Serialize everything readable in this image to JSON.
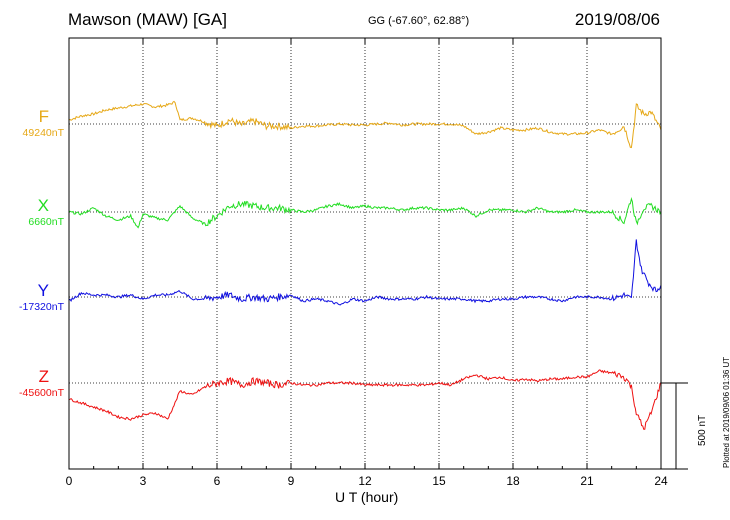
{
  "header": {
    "station": "Mawson (MAW)  [GA]",
    "coords": "GG (-67.60°,  62.88°)",
    "date": "2019/08/06"
  },
  "footer": {
    "plotted": "Plotted at 2019/09/06 01:36 UT"
  },
  "scale_bar": {
    "label": "500 nT",
    "value_nT": 500
  },
  "colors": {
    "F": "#e6a817",
    "X": "#22dd22",
    "Y": "#1010e0",
    "Z": "#ee1111"
  },
  "chart_data": {
    "type": "line",
    "xlabel": "U T (hour)",
    "xlim": [
      0,
      24
    ],
    "xticks": [
      0,
      3,
      6,
      9,
      12,
      15,
      18,
      21,
      24
    ],
    "xtick_labels": [
      "0",
      "3",
      "6",
      "9",
      "12",
      "15",
      "18",
      "21",
      "24"
    ],
    "grid": true,
    "units": "nT",
    "series": [
      {
        "name": "F",
        "baseline_label": "49240nT",
        "baseline": 49240,
        "x": [
          0,
          0.5,
          1,
          1.5,
          2,
          2.5,
          3,
          3.5,
          4,
          4.3,
          4.5,
          5,
          5.5,
          6,
          6.5,
          7,
          7.5,
          8,
          8.5,
          9,
          9.5,
          10,
          10.5,
          11,
          11.5,
          12,
          12.5,
          13,
          13.5,
          14,
          14.5,
          15,
          15.5,
          16,
          16.5,
          17,
          17.5,
          18,
          18.5,
          19,
          19.5,
          20,
          20.5,
          21,
          21.5,
          22,
          22.5,
          22.8,
          23,
          23.3,
          23.6,
          24
        ],
        "y": [
          40,
          80,
          100,
          140,
          160,
          180,
          200,
          170,
          190,
          220,
          40,
          60,
          20,
          -20,
          40,
          -10,
          30,
          -20,
          -20,
          -40,
          -20,
          -20,
          -10,
          0,
          -10,
          -10,
          0,
          10,
          -10,
          0,
          0,
          0,
          0,
          -20,
          -100,
          -80,
          -40,
          -60,
          -60,
          -40,
          -80,
          -100,
          -100,
          -90,
          -60,
          -100,
          -20,
          -240,
          180,
          100,
          120,
          -60
        ]
      },
      {
        "name": "X",
        "baseline_label": "6660nT",
        "baseline": 6660,
        "x": [
          0,
          0.5,
          1,
          1.5,
          2,
          2.5,
          2.8,
          3,
          3.5,
          4,
          4.5,
          5,
          5.5,
          6,
          6.5,
          7,
          7.5,
          8,
          8.5,
          9,
          9.5,
          10,
          10.5,
          11,
          11.5,
          12,
          12.5,
          13,
          13.5,
          14,
          14.5,
          15,
          15.5,
          16,
          16.5,
          17,
          17.5,
          18,
          18.5,
          19,
          19.5,
          20,
          20.5,
          21,
          21.5,
          22,
          22.5,
          22.8,
          23,
          23.3,
          23.6,
          24
        ],
        "y": [
          0,
          -20,
          40,
          -40,
          -80,
          -40,
          -160,
          -20,
          -60,
          -80,
          60,
          -60,
          -120,
          -40,
          60,
          80,
          60,
          40,
          40,
          20,
          0,
          20,
          60,
          80,
          40,
          60,
          40,
          40,
          20,
          40,
          40,
          20,
          20,
          40,
          -40,
          20,
          20,
          20,
          0,
          40,
          0,
          0,
          20,
          0,
          0,
          0,
          -100,
          140,
          -120,
          40,
          60,
          0
        ]
      },
      {
        "name": "Y",
        "baseline_label": "-17320nT",
        "baseline": -17320,
        "x": [
          0,
          0.5,
          1,
          1.5,
          2,
          2.5,
          3,
          3.5,
          4,
          4.5,
          5,
          5.5,
          6,
          6.5,
          7,
          7.5,
          8,
          8.5,
          9,
          9.5,
          10,
          10.5,
          11,
          11.5,
          12,
          12.5,
          13,
          13.5,
          14,
          14.5,
          15,
          15.5,
          16,
          16.5,
          17,
          17.5,
          18,
          18.5,
          19,
          19.5,
          20,
          20.5,
          21,
          21.5,
          22,
          22.5,
          22.8,
          23,
          23.2,
          23.5,
          23.8,
          24
        ],
        "y": [
          -40,
          40,
          20,
          20,
          0,
          20,
          -20,
          20,
          20,
          60,
          -20,
          -20,
          0,
          20,
          -20,
          0,
          -20,
          0,
          20,
          -40,
          -20,
          -40,
          -80,
          -20,
          -40,
          0,
          -20,
          -20,
          -20,
          0,
          -20,
          -20,
          -20,
          -40,
          -40,
          -20,
          -20,
          0,
          0,
          -20,
          -40,
          0,
          0,
          0,
          -20,
          20,
          -20,
          560,
          280,
          140,
          60,
          120
        ]
      },
      {
        "name": "Z",
        "baseline_label": "-45600nT",
        "baseline": -45600,
        "x": [
          0,
          0.5,
          1,
          1.5,
          2,
          2.5,
          3,
          3.5,
          4,
          4.3,
          4.5,
          5,
          5.5,
          6,
          6.5,
          7,
          7.5,
          8,
          8.5,
          9,
          9.5,
          10,
          10.5,
          11,
          11.5,
          12,
          12.5,
          13,
          13.5,
          14,
          14.5,
          15,
          15.5,
          16,
          16.5,
          17,
          17.5,
          18,
          18.5,
          19,
          19.5,
          20,
          20.5,
          21,
          21.5,
          22,
          22.3,
          22.6,
          22.8,
          23,
          23.3,
          23.6,
          24
        ],
        "y": [
          -160,
          -200,
          -240,
          -280,
          -340,
          -360,
          -320,
          -300,
          -360,
          -200,
          -80,
          -120,
          -40,
          0,
          20,
          -20,
          20,
          0,
          -20,
          0,
          -20,
          -20,
          0,
          0,
          0,
          -20,
          -20,
          -20,
          -20,
          -20,
          -20,
          0,
          -20,
          40,
          80,
          40,
          60,
          20,
          40,
          20,
          40,
          40,
          60,
          60,
          120,
          100,
          80,
          40,
          -40,
          -300,
          -460,
          -300,
          0
        ]
      }
    ]
  }
}
